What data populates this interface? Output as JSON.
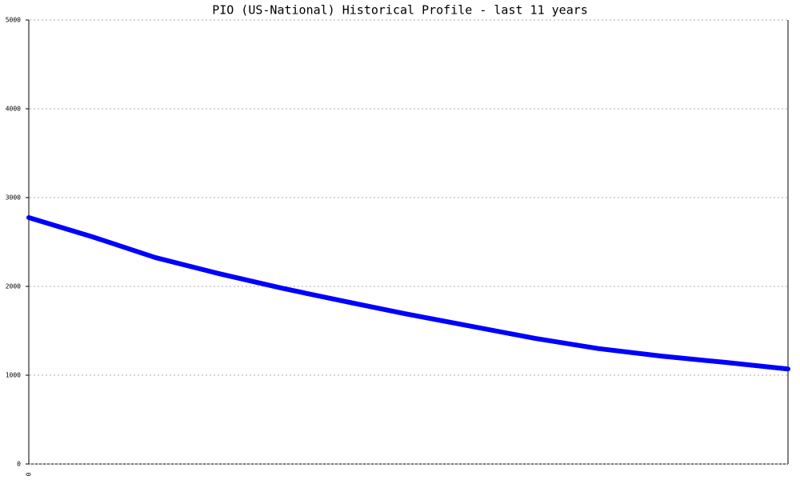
{
  "chart_data": {
    "type": "line",
    "title": "PIO (US-National) Historical Profile - last 11 years",
    "categories": [
      "0",
      null,
      null,
      null,
      null,
      null,
      null,
      null,
      null,
      null,
      null,
      null,
      null
    ],
    "values": [
      2775,
      2560,
      2325,
      2145,
      1980,
      1830,
      1685,
      1550,
      1415,
      1300,
      1215,
      1145,
      1070
    ],
    "color": "#0000ff",
    "ylim": [
      0,
      5000
    ],
    "yticks": [
      0,
      1000,
      2000,
      3000,
      4000,
      5000
    ],
    "grid": true
  }
}
